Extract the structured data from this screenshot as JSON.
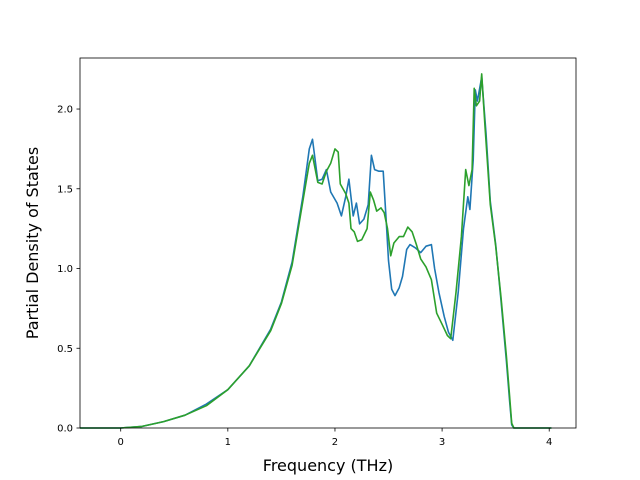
{
  "chart_data": {
    "type": "line",
    "title": "",
    "xlabel": "Frequency (THz)",
    "ylabel": "Partial Density of States",
    "xlim": [
      -0.38,
      4.25
    ],
    "ylim": [
      0,
      2.32
    ],
    "xticks": [
      0,
      1,
      2,
      3,
      4
    ],
    "yticks": [
      0.0,
      0.5,
      1.0,
      1.5,
      2.0
    ],
    "grid": false,
    "legend": "none",
    "series": [
      {
        "color": "#1f77b4",
        "points": [
          [
            -0.38,
            0.0
          ],
          [
            0.0,
            0.0
          ],
          [
            0.2,
            0.01
          ],
          [
            0.4,
            0.04
          ],
          [
            0.6,
            0.08
          ],
          [
            0.8,
            0.15
          ],
          [
            1.0,
            0.24
          ],
          [
            1.2,
            0.39
          ],
          [
            1.4,
            0.62
          ],
          [
            1.5,
            0.79
          ],
          [
            1.6,
            1.04
          ],
          [
            1.7,
            1.45
          ],
          [
            1.76,
            1.75
          ],
          [
            1.79,
            1.81
          ],
          [
            1.84,
            1.55
          ],
          [
            1.88,
            1.56
          ],
          [
            1.92,
            1.62
          ],
          [
            1.96,
            1.48
          ],
          [
            2.02,
            1.41
          ],
          [
            2.06,
            1.33
          ],
          [
            2.1,
            1.45
          ],
          [
            2.13,
            1.56
          ],
          [
            2.17,
            1.33
          ],
          [
            2.2,
            1.41
          ],
          [
            2.23,
            1.28
          ],
          [
            2.27,
            1.31
          ],
          [
            2.31,
            1.4
          ],
          [
            2.34,
            1.71
          ],
          [
            2.37,
            1.62
          ],
          [
            2.41,
            1.61
          ],
          [
            2.45,
            1.61
          ],
          [
            2.48,
            1.28
          ],
          [
            2.5,
            1.05
          ],
          [
            2.53,
            0.87
          ],
          [
            2.56,
            0.83
          ],
          [
            2.6,
            0.88
          ],
          [
            2.63,
            0.95
          ],
          [
            2.67,
            1.12
          ],
          [
            2.7,
            1.15
          ],
          [
            2.75,
            1.13
          ],
          [
            2.8,
            1.1
          ],
          [
            2.85,
            1.14
          ],
          [
            2.9,
            1.15
          ],
          [
            2.93,
            1.0
          ],
          [
            2.97,
            0.85
          ],
          [
            3.02,
            0.7
          ],
          [
            3.06,
            0.6
          ],
          [
            3.1,
            0.55
          ],
          [
            3.15,
            0.85
          ],
          [
            3.2,
            1.25
          ],
          [
            3.24,
            1.45
          ],
          [
            3.26,
            1.37
          ],
          [
            3.29,
            1.68
          ],
          [
            3.31,
            2.12
          ],
          [
            3.33,
            2.05
          ],
          [
            3.37,
            2.2
          ],
          [
            3.41,
            1.85
          ],
          [
            3.45,
            1.42
          ],
          [
            3.5,
            1.15
          ],
          [
            3.55,
            0.8
          ],
          [
            3.6,
            0.42
          ],
          [
            3.63,
            0.17
          ],
          [
            3.65,
            0.02
          ],
          [
            3.67,
            0.0
          ],
          [
            4.02,
            0.0
          ]
        ]
      },
      {
        "color": "#2ca02c",
        "points": [
          [
            -0.38,
            0.0
          ],
          [
            0.0,
            0.0
          ],
          [
            0.2,
            0.01
          ],
          [
            0.4,
            0.04
          ],
          [
            0.6,
            0.08
          ],
          [
            0.8,
            0.14
          ],
          [
            1.0,
            0.24
          ],
          [
            1.2,
            0.39
          ],
          [
            1.4,
            0.61
          ],
          [
            1.5,
            0.78
          ],
          [
            1.6,
            1.02
          ],
          [
            1.7,
            1.42
          ],
          [
            1.76,
            1.66
          ],
          [
            1.79,
            1.71
          ],
          [
            1.84,
            1.54
          ],
          [
            1.88,
            1.53
          ],
          [
            1.92,
            1.61
          ],
          [
            1.96,
            1.66
          ],
          [
            2.0,
            1.75
          ],
          [
            2.03,
            1.73
          ],
          [
            2.05,
            1.53
          ],
          [
            2.1,
            1.47
          ],
          [
            2.13,
            1.41
          ],
          [
            2.15,
            1.25
          ],
          [
            2.18,
            1.23
          ],
          [
            2.21,
            1.17
          ],
          [
            2.25,
            1.18
          ],
          [
            2.3,
            1.25
          ],
          [
            2.33,
            1.48
          ],
          [
            2.36,
            1.43
          ],
          [
            2.39,
            1.36
          ],
          [
            2.43,
            1.38
          ],
          [
            2.46,
            1.35
          ],
          [
            2.49,
            1.25
          ],
          [
            2.52,
            1.08
          ],
          [
            2.55,
            1.16
          ],
          [
            2.6,
            1.2
          ],
          [
            2.64,
            1.2
          ],
          [
            2.68,
            1.26
          ],
          [
            2.72,
            1.23
          ],
          [
            2.76,
            1.15
          ],
          [
            2.8,
            1.06
          ],
          [
            2.85,
            1.01
          ],
          [
            2.9,
            0.93
          ],
          [
            2.95,
            0.72
          ],
          [
            3.0,
            0.65
          ],
          [
            3.05,
            0.58
          ],
          [
            3.08,
            0.56
          ],
          [
            3.13,
            0.85
          ],
          [
            3.18,
            1.2
          ],
          [
            3.22,
            1.62
          ],
          [
            3.25,
            1.52
          ],
          [
            3.28,
            1.62
          ],
          [
            3.3,
            2.13
          ],
          [
            3.32,
            2.02
          ],
          [
            3.35,
            2.05
          ],
          [
            3.37,
            2.22
          ],
          [
            3.4,
            1.9
          ],
          [
            3.45,
            1.4
          ],
          [
            3.5,
            1.14
          ],
          [
            3.55,
            0.82
          ],
          [
            3.6,
            0.45
          ],
          [
            3.63,
            0.2
          ],
          [
            3.65,
            0.03
          ],
          [
            3.67,
            0.0
          ],
          [
            4.02,
            0.0
          ]
        ]
      }
    ]
  }
}
